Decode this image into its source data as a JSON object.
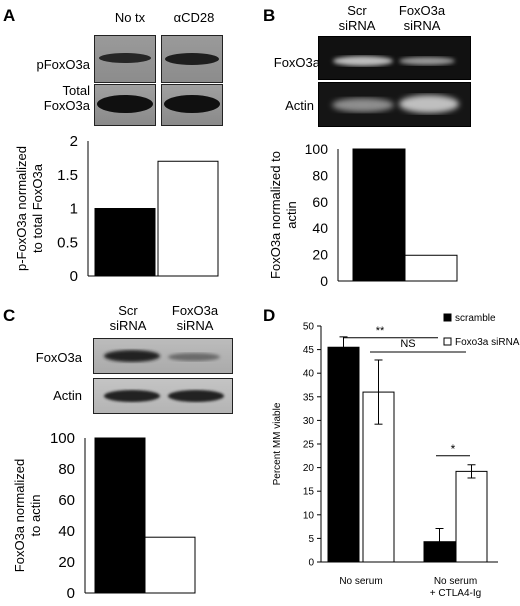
{
  "panels": {
    "A": {
      "letter": "A",
      "lanes": [
        "No tx",
        "αCD28"
      ],
      "rows": [
        {
          "label": [
            "pFoxO3a"
          ]
        },
        {
          "label": [
            "Total",
            "FoxO3a"
          ]
        }
      ]
    },
    "B": {
      "letter": "B",
      "lanes": [
        [
          "Scr",
          "siRNA"
        ],
        [
          "FoxO3a",
          "siRNA"
        ]
      ],
      "rows": [
        {
          "label": [
            "FoxO3a"
          ]
        },
        {
          "label": [
            "Actin"
          ]
        }
      ]
    },
    "C": {
      "letter": "C",
      "lanes": [
        [
          "Scr",
          "siRNA"
        ],
        [
          "FoxO3a",
          "siRNA"
        ]
      ],
      "rows": [
        {
          "label": [
            "FoxO3a"
          ]
        },
        {
          "label": [
            "Actin"
          ]
        }
      ]
    },
    "D": {
      "letter": "D",
      "significance": [
        {
          "text": "**"
        },
        {
          "text": "NS"
        },
        {
          "text": "*"
        }
      ]
    }
  },
  "chart_data": [
    {
      "panel": "A",
      "type": "bar",
      "categories": [
        "No tx",
        "αCD28"
      ],
      "values": [
        1.0,
        1.7
      ],
      "colors": [
        "#000000",
        "#ffffff"
      ],
      "ylabel": [
        "p-FoxO3a normalized",
        "to total FoxO3a"
      ],
      "ylim": [
        0,
        2
      ],
      "yticks": [
        0,
        0.5,
        1,
        1.5,
        2
      ],
      "ytick_labels": [
        "0",
        "0.5",
        "1",
        "1.5",
        "2"
      ],
      "grid": false
    },
    {
      "panel": "B",
      "type": "bar",
      "categories": [
        "Scr siRNA",
        "FoxO3a siRNA"
      ],
      "values": [
        100,
        19.5
      ],
      "colors": [
        "#000000",
        "#ffffff"
      ],
      "ylabel": [
        "FoxO3a normalized to",
        "actin"
      ],
      "ylim": [
        0,
        100
      ],
      "yticks": [
        0,
        20,
        40,
        60,
        80,
        100
      ],
      "ytick_labels": [
        "0",
        "20",
        "40",
        "60",
        "80",
        "100"
      ],
      "grid": false
    },
    {
      "panel": "C",
      "type": "bar",
      "categories": [
        "Scr siRNA",
        "FoxO3a siRNA"
      ],
      "values": [
        100,
        36
      ],
      "colors": [
        "#000000",
        "#ffffff"
      ],
      "ylabel": [
        "FoxO3a normalized",
        "to actin"
      ],
      "ylim": [
        0,
        100
      ],
      "yticks": [
        0,
        20,
        40,
        60,
        80,
        100
      ],
      "ytick_labels": [
        "0",
        "20",
        "40",
        "60",
        "80",
        "100"
      ],
      "grid": false
    },
    {
      "panel": "D",
      "type": "bar",
      "categories": [
        [
          "No serum"
        ],
        [
          "No serum",
          "+ CTLA4-Ig"
        ]
      ],
      "series": [
        {
          "name": "scramble",
          "color": "#000000",
          "values": [
            45.5,
            4.3
          ],
          "errors": [
            2.2,
            2.8
          ]
        },
        {
          "name": "Foxo3a siRNA",
          "color": "#ffffff",
          "values": [
            36.0,
            19.2
          ],
          "errors": [
            6.8,
            1.4
          ]
        }
      ],
      "ylabel": "Percent MM viable",
      "ylim": [
        0,
        50
      ],
      "yticks": [
        0,
        5,
        10,
        15,
        20,
        25,
        30,
        35,
        40,
        45,
        50
      ],
      "ytick_labels": [
        "0",
        "5",
        "10",
        "15",
        "20",
        "25",
        "30",
        "35",
        "40",
        "45",
        "50"
      ],
      "legend_position": "top-right",
      "grid": false
    }
  ]
}
